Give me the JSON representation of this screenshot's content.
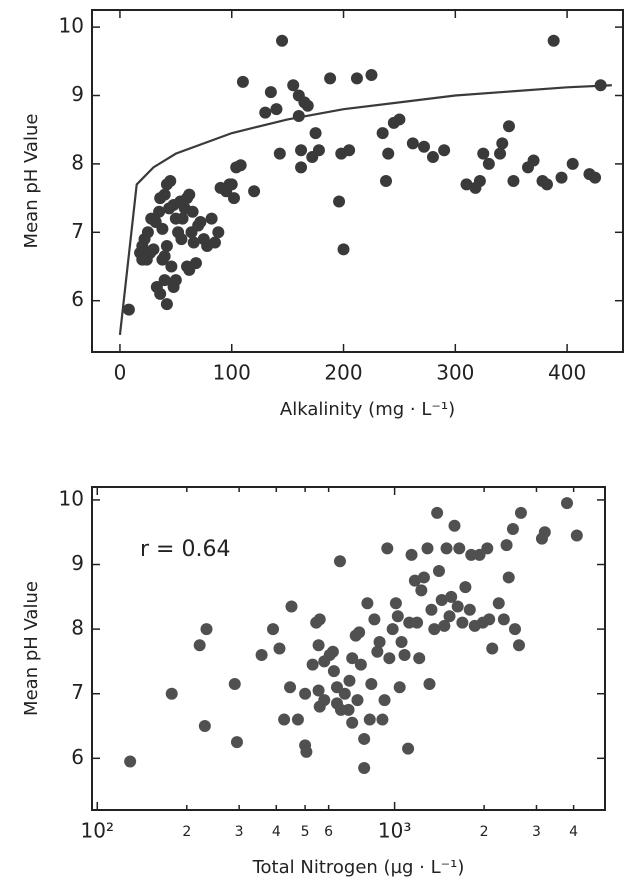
{
  "chart_data": [
    {
      "type": "scatter",
      "xlabel": "Alkalinity (mg · L⁻¹)",
      "ylabel": "Mean pH Value",
      "xlim": [
        -25,
        450
      ],
      "ylim": [
        5.25,
        10.25
      ],
      "xticks": [
        0,
        100,
        200,
        300,
        400
      ],
      "yticks": [
        6,
        7,
        8,
        9,
        10
      ],
      "series": [
        {
          "mode": "markers",
          "color": "#3a3a3a",
          "x": [
            8,
            20,
            18,
            22,
            25,
            20,
            24,
            27,
            30,
            28,
            32,
            35,
            33,
            36,
            40,
            42,
            38,
            40,
            42,
            38,
            36,
            40,
            42,
            45,
            44,
            48,
            50,
            52,
            55,
            56,
            58,
            50,
            48,
            46,
            54,
            60,
            62,
            65,
            64,
            66,
            60,
            62,
            68,
            70,
            72,
            75,
            78,
            82,
            85,
            88,
            90,
            95,
            98,
            100,
            102,
            104,
            108,
            110,
            120,
            130,
            135,
            140,
            143,
            145,
            155,
            160,
            160,
            165,
            168,
            162,
            162,
            172,
            175,
            178,
            188,
            196,
            198,
            200,
            205,
            212,
            225,
            235,
            238,
            240,
            245,
            250,
            262,
            272,
            280,
            290,
            310,
            318,
            322,
            325,
            330,
            340,
            342,
            348,
            352,
            365,
            370,
            378,
            382,
            388,
            395,
            405,
            420,
            425,
            430
          ],
          "values": [
            5.87,
            6.6,
            6.7,
            6.9,
            7.0,
            6.8,
            6.6,
            6.7,
            6.75,
            7.2,
            7.15,
            7.3,
            6.2,
            6.1,
            6.3,
            5.95,
            6.6,
            6.65,
            6.8,
            7.05,
            7.5,
            7.55,
            7.7,
            7.75,
            7.35,
            7.4,
            7.2,
            7.0,
            6.9,
            7.2,
            7.35,
            6.3,
            6.2,
            6.5,
            7.45,
            7.5,
            7.55,
            7.3,
            7.0,
            6.85,
            6.5,
            6.45,
            6.55,
            7.1,
            7.15,
            6.9,
            6.8,
            7.2,
            6.85,
            7.0,
            7.65,
            7.6,
            7.7,
            7.7,
            7.5,
            7.95,
            7.98,
            9.2,
            7.6,
            8.75,
            9.05,
            8.8,
            8.15,
            9.8,
            9.15,
            8.7,
            9.0,
            8.9,
            8.85,
            8.2,
            7.95,
            8.1,
            8.45,
            8.2,
            9.25,
            7.45,
            8.15,
            6.75,
            8.2,
            9.25,
            9.3,
            8.45,
            7.75,
            8.15,
            8.6,
            8.65,
            8.3,
            8.25,
            8.1,
            8.2,
            7.7,
            7.65,
            7.75,
            8.15,
            8.0,
            8.15,
            8.3,
            8.55,
            7.75,
            7.95,
            8.05,
            7.75,
            7.7,
            9.8,
            7.8,
            8.0,
            7.85,
            7.8,
            9.15
          ]
        },
        {
          "mode": "line",
          "color": "#3a3a3a",
          "x": [
            0,
            15,
            30,
            50,
            100,
            150,
            200,
            300,
            400,
            440
          ],
          "values": [
            5.5,
            7.7,
            7.95,
            8.15,
            8.45,
            8.65,
            8.8,
            9.0,
            9.12,
            9.15
          ]
        }
      ]
    },
    {
      "type": "scatter",
      "xlabel": "Total Nitrogen (µg · L⁻¹)",
      "ylabel": "Mean pH Value",
      "annotation": "r = 0.64",
      "xscale": "log",
      "xlim": [
        96,
        5100
      ],
      "ylim": [
        5.2,
        10.2
      ],
      "xticks": [
        {
          "value": 100,
          "label": "10²"
        },
        {
          "value": 200,
          "label": "2"
        },
        {
          "value": 300,
          "label": "3"
        },
        {
          "value": 400,
          "label": "4"
        },
        {
          "value": 500,
          "label": "5"
        },
        {
          "value": 600,
          "label": "6"
        },
        {
          "value": 1000,
          "label": "10³"
        },
        {
          "value": 2000,
          "label": "2"
        },
        {
          "value": 3000,
          "label": "3"
        },
        {
          "value": 4000,
          "label": "4"
        }
      ],
      "yticks": [
        6,
        7,
        8,
        9,
        10
      ],
      "series": [
        {
          "mode": "markers",
          "color": "#505050",
          "x": [
            129,
            178,
            221,
            233,
            230,
            290,
            295,
            357,
            390,
            410,
            450,
            425,
            473,
            445,
            500,
            500,
            505,
            530,
            545,
            560,
            555,
            555,
            560,
            580,
            580,
            605,
            620,
            625,
            640,
            655,
            640,
            660,
            680,
            700,
            705,
            720,
            720,
            740,
            760,
            750,
            770,
            790,
            790,
            810,
            825,
            835,
            855,
            875,
            890,
            910,
            925,
            945,
            960,
            985,
            1010,
            1025,
            1040,
            1055,
            1080,
            1110,
            1120,
            1140,
            1170,
            1190,
            1210,
            1230,
            1255,
            1290,
            1310,
            1330,
            1360,
            1390,
            1410,
            1440,
            1470,
            1495,
            1530,
            1550,
            1590,
            1630,
            1650,
            1690,
            1730,
            1790,
            1810,
            1860,
            1930,
            1980,
            2050,
            2080,
            2130,
            2240,
            2330,
            2380,
            2420,
            2500,
            2540,
            2620,
            2660,
            3130,
            3200,
            3800,
            4100
          ],
          "values": [
            5.95,
            7.0,
            7.75,
            8.0,
            6.5,
            7.15,
            6.25,
            7.6,
            8.0,
            7.7,
            8.35,
            6.6,
            6.6,
            7.1,
            7.0,
            6.2,
            6.1,
            7.45,
            8.1,
            8.15,
            7.75,
            7.05,
            6.8,
            6.9,
            7.5,
            7.6,
            7.65,
            7.35,
            7.1,
            9.05,
            6.85,
            6.75,
            7.0,
            6.75,
            7.2,
            7.55,
            6.55,
            7.9,
            7.95,
            6.9,
            7.45,
            6.3,
            5.85,
            8.4,
            6.6,
            7.15,
            8.15,
            7.65,
            7.8,
            6.6,
            6.9,
            9.25,
            7.55,
            8.0,
            8.4,
            8.2,
            7.1,
            7.8,
            7.6,
            6.15,
            8.1,
            9.15,
            8.75,
            8.1,
            7.55,
            8.6,
            8.8,
            9.25,
            7.15,
            8.3,
            8.0,
            9.8,
            8.9,
            8.45,
            8.05,
            9.25,
            8.2,
            8.5,
            9.6,
            8.35,
            9.25,
            8.1,
            8.65,
            8.3,
            9.15,
            8.05,
            9.15,
            8.1,
            9.25,
            8.15,
            7.7,
            8.4,
            8.15,
            9.3,
            8.8,
            9.55,
            8.0,
            7.75,
            9.8,
            9.4,
            9.5,
            9.95,
            9.45
          ]
        }
      ]
    }
  ]
}
